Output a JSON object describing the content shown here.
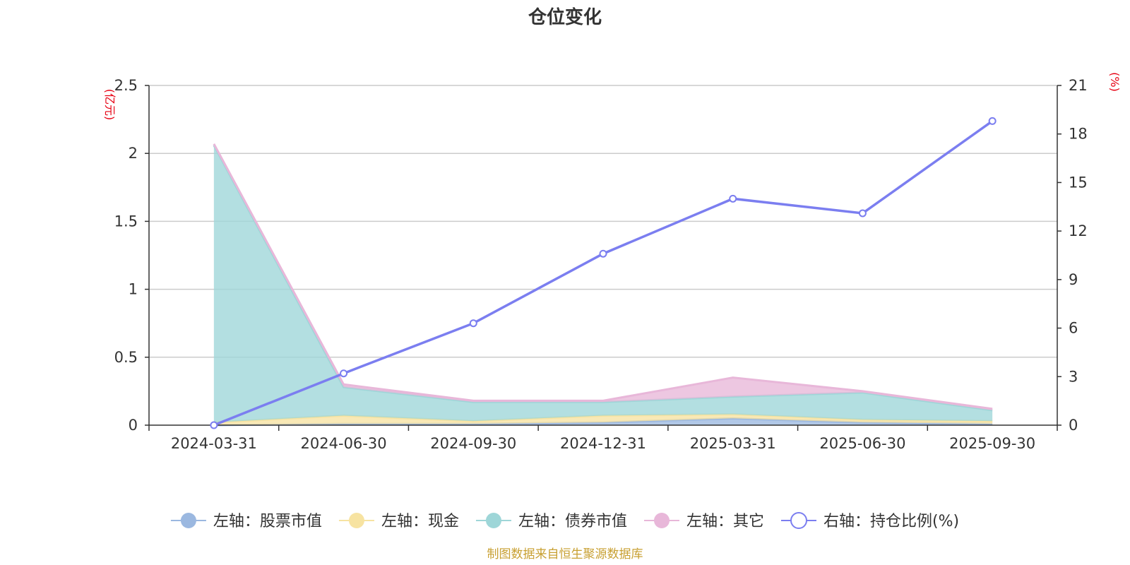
{
  "chart_data": {
    "type": "area",
    "title": "仓位变化",
    "categories": [
      "2024-03-31",
      "2024-06-30",
      "2024-09-30",
      "2024-12-31",
      "2025-03-31",
      "2025-06-30",
      "2025-09-30"
    ],
    "y_left": {
      "unit": "(亿元)",
      "min": 0,
      "max": 2.5,
      "ticks": [
        "0",
        "0.5",
        "1",
        "1.5",
        "2",
        "2.5"
      ]
    },
    "y_right": {
      "unit": "(%)",
      "min": 0,
      "max": 21,
      "ticks": [
        "0",
        "3",
        "6",
        "9",
        "12",
        "15",
        "18",
        "21"
      ]
    },
    "stacked_series": [
      {
        "name": "左轴：股票市值",
        "color": "#9bb8e0",
        "values": [
          0.0,
          0.01,
          0.01,
          0.02,
          0.05,
          0.02,
          0.01
        ]
      },
      {
        "name": "左轴：现金",
        "color": "#f7e3a1",
        "values": [
          0.02,
          0.06,
          0.02,
          0.05,
          0.03,
          0.02,
          0.02
        ]
      },
      {
        "name": "左轴：债券市值",
        "color": "#9ed6d8",
        "values": [
          2.04,
          0.21,
          0.14,
          0.1,
          0.13,
          0.2,
          0.08
        ]
      },
      {
        "name": "左轴：其它",
        "color": "#e8b7d9",
        "values": [
          0.01,
          0.02,
          0.01,
          0.01,
          0.14,
          0.01,
          0.01
        ]
      }
    ],
    "line_series": {
      "name": "右轴：持仓比例(%)",
      "color": "#7b7ef0",
      "axis": "right",
      "values": [
        0.0,
        3.2,
        6.3,
        10.6,
        14.0,
        13.1,
        18.8
      ]
    },
    "grid": true,
    "legend_position": "bottom"
  },
  "source_note": "制图数据来自恒生聚源数据库"
}
